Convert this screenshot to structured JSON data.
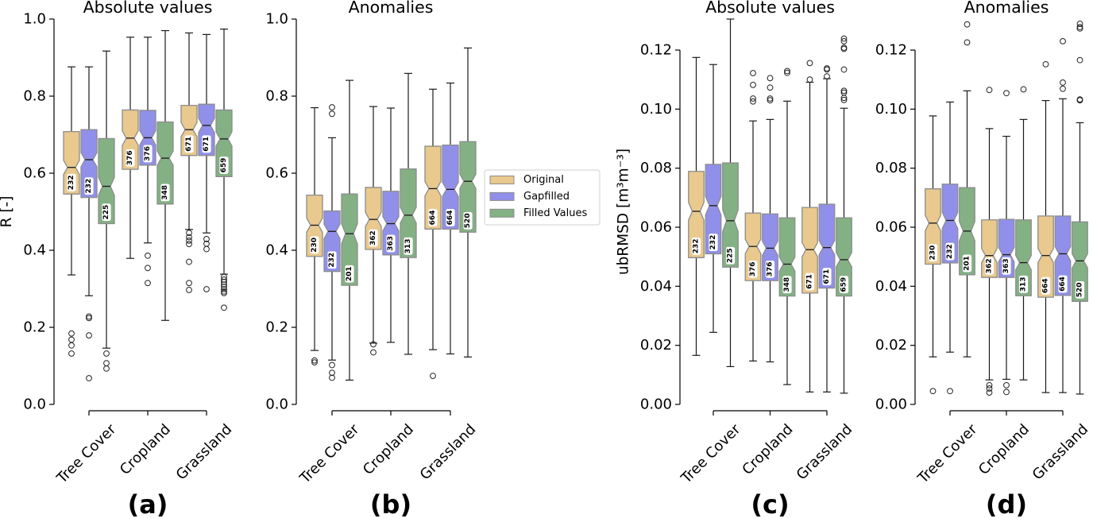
{
  "legend": {
    "placement": "between panels (b) and (c), vertically centered",
    "items": [
      {
        "label": "Original",
        "color": "#E9C98E"
      },
      {
        "label": "Gapfilled",
        "color": "#9090EA"
      },
      {
        "label": "Filled Values",
        "color": "#83B184"
      }
    ]
  },
  "chart_data": [
    {
      "type": "box",
      "panel_label": "(a)",
      "title": "Absolute values",
      "ylabel": "R [-]",
      "xlabel": "",
      "ylim": [
        0,
        1.0
      ],
      "yticks": [
        0,
        0.2,
        0.4,
        0.6,
        0.8,
        1.0
      ],
      "ytick_labels": [
        "0.0",
        "0.2",
        "0.4",
        "0.6",
        "0.8",
        "1.0"
      ],
      "grid": false,
      "notched": true,
      "categories": [
        "Tree Cover",
        "Cropland",
        "Grassland"
      ],
      "series": [
        {
          "name": "Original",
          "boxes": [
            {
              "whislo": 0.336,
              "q1": 0.546,
              "median": 0.615,
              "q3": 0.708,
              "whishi": 0.876,
              "n": 232,
              "fliers": [
                0.184,
                0.168,
                0.153,
                0.132
              ]
            },
            {
              "whislo": 0.379,
              "q1": 0.61,
              "median": 0.691,
              "q3": 0.764,
              "whishi": 0.953,
              "n": 376,
              "fliers": []
            },
            {
              "whislo": 0.454,
              "q1": 0.646,
              "median": 0.713,
              "q3": 0.776,
              "whishi": 0.964,
              "n": 671,
              "fliers": [
                0.445,
                0.434,
                0.425,
                0.416,
                0.37,
                0.315,
                0.297
              ]
            }
          ]
        },
        {
          "name": "Gapfilled",
          "boxes": [
            {
              "whislo": 0.282,
              "q1": 0.537,
              "median": 0.635,
              "q3": 0.713,
              "whishi": 0.876,
              "n": 232,
              "fliers": [
                0.228,
                0.224,
                0.179,
                0.068
              ]
            },
            {
              "whislo": 0.419,
              "q1": 0.621,
              "median": 0.692,
              "q3": 0.763,
              "whishi": 0.953,
              "n": 376,
              "fliers": [
                0.386,
                0.354,
                0.315
              ]
            },
            {
              "whislo": 0.445,
              "q1": 0.646,
              "median": 0.724,
              "q3": 0.779,
              "whishi": 0.96,
              "n": 671,
              "fliers": [
                0.429,
                0.417,
                0.403,
                0.299
              ]
            }
          ]
        },
        {
          "name": "Filled Values",
          "boxes": [
            {
              "whislo": 0.146,
              "q1": 0.469,
              "median": 0.566,
              "q3": 0.69,
              "whishi": 0.917,
              "n": 225,
              "fliers": [
                0.132,
                0.107,
                0.093
              ]
            },
            {
              "whislo": 0.218,
              "q1": 0.52,
              "median": 0.639,
              "q3": 0.733,
              "whishi": 0.97,
              "n": 348,
              "fliers": []
            },
            {
              "whislo": 0.338,
              "q1": 0.591,
              "median": 0.689,
              "q3": 0.764,
              "whishi": 0.974,
              "n": 659,
              "fliers": [
                0.331,
                0.324,
                0.318,
                0.311,
                0.305,
                0.299,
                0.293,
                0.289,
                0.251
              ]
            }
          ]
        }
      ]
    },
    {
      "type": "box",
      "panel_label": "(b)",
      "title": "Anomalies",
      "ylabel": "",
      "xlabel": "",
      "ylim": [
        0,
        1.0
      ],
      "yticks": [
        0,
        0.2,
        0.4,
        0.6,
        0.8,
        1.0
      ],
      "ytick_labels": [
        "0.0",
        "0.2",
        "0.4",
        "0.6",
        "0.8",
        "1.0"
      ],
      "grid": false,
      "notched": true,
      "categories": [
        "Tree Cover",
        "Cropland",
        "Grassland"
      ],
      "series": [
        {
          "name": "Original",
          "boxes": [
            {
              "whislo": 0.14,
              "q1": 0.384,
              "median": 0.465,
              "q3": 0.543,
              "whishi": 0.77,
              "n": 230,
              "fliers": [
                0.114,
                0.109
              ]
            },
            {
              "whislo": 0.159,
              "q1": 0.402,
              "median": 0.48,
              "q3": 0.563,
              "whishi": 0.773,
              "n": 362,
              "fliers": [
                0.156,
                0.135
              ]
            },
            {
              "whislo": 0.142,
              "q1": 0.455,
              "median": 0.56,
              "q3": 0.67,
              "whishi": 0.818,
              "n": 664,
              "fliers": [
                0.074
              ]
            }
          ]
        },
        {
          "name": "Gapfilled",
          "boxes": [
            {
              "whislo": 0.115,
              "q1": 0.345,
              "median": 0.449,
              "q3": 0.502,
              "whishi": 0.692,
              "n": 232,
              "fliers": [
                0.771,
                0.754,
                0.102,
                0.082,
                0.069
              ]
            },
            {
              "whislo": 0.161,
              "q1": 0.388,
              "median": 0.469,
              "q3": 0.553,
              "whishi": 0.769,
              "n": 363,
              "fliers": []
            },
            {
              "whislo": 0.131,
              "q1": 0.455,
              "median": 0.558,
              "q3": 0.673,
              "whishi": 0.834,
              "n": 664,
              "fliers": []
            }
          ]
        },
        {
          "name": "Filled Values",
          "boxes": [
            {
              "whislo": 0.063,
              "q1": 0.309,
              "median": 0.443,
              "q3": 0.546,
              "whishi": 0.841,
              "n": 201,
              "fliers": []
            },
            {
              "whislo": 0.13,
              "q1": 0.381,
              "median": 0.491,
              "q3": 0.611,
              "whishi": 0.859,
              "n": 313,
              "fliers": []
            },
            {
              "whislo": 0.123,
              "q1": 0.447,
              "median": 0.579,
              "q3": 0.682,
              "whishi": 0.925,
              "n": 520,
              "fliers": []
            }
          ]
        }
      ]
    },
    {
      "type": "box",
      "panel_label": "(c)",
      "title": "Absolute values",
      "ylabel": "ubRMSD [m³m⁻³]",
      "xlabel": "",
      "ylim": [
        0,
        0.1305
      ],
      "yticks": [
        0,
        0.02,
        0.04,
        0.06,
        0.08,
        0.1,
        0.12
      ],
      "ytick_labels": [
        "0.00",
        "0.02",
        "0.04",
        "0.06",
        "0.08",
        "0.10",
        "0.12"
      ],
      "grid": false,
      "notched": true,
      "categories": [
        "Tree Cover",
        "Cropland",
        "Grassland"
      ],
      "series": [
        {
          "name": "Original",
          "boxes": [
            {
              "whislo": 0.0166,
              "q1": 0.0497,
              "median": 0.0654,
              "q3": 0.0789,
              "whishi": 0.1175,
              "n": 232,
              "fliers": []
            },
            {
              "whislo": 0.0147,
              "q1": 0.0419,
              "median": 0.0535,
              "q3": 0.0648,
              "whishi": 0.096,
              "n": 376,
              "fliers": [
                0.1122,
                0.1082,
                0.1036,
                0.1026
              ]
            },
            {
              "whislo": 0.0042,
              "q1": 0.0377,
              "median": 0.0524,
              "q3": 0.0667,
              "whishi": 0.1091,
              "n": 671,
              "fliers": [
                0.1156,
                0.11
              ]
            }
          ]
        },
        {
          "name": "Gapfilled",
          "boxes": [
            {
              "whislo": 0.0244,
              "q1": 0.051,
              "median": 0.0673,
              "q3": 0.0813,
              "whishi": 0.1151,
              "n": 232,
              "fliers": []
            },
            {
              "whislo": 0.0144,
              "q1": 0.0419,
              "median": 0.0529,
              "q3": 0.0645,
              "whishi": 0.0965,
              "n": 376,
              "fliers": [
                0.1105,
                0.1073,
                0.1036,
                0.103
              ]
            },
            {
              "whislo": 0.0042,
              "q1": 0.0394,
              "median": 0.0531,
              "q3": 0.0678,
              "whishi": 0.1103,
              "n": 671,
              "fliers": [
                0.1138,
                0.1134,
                0.1111
              ]
            }
          ]
        },
        {
          "name": "Filled Values",
          "boxes": [
            {
              "whislo": 0.0128,
              "q1": 0.0465,
              "median": 0.0622,
              "q3": 0.0818,
              "whishi": 0.1305,
              "n": 225,
              "fliers": []
            },
            {
              "whislo": 0.0067,
              "q1": 0.0367,
              "median": 0.0475,
              "q3": 0.0632,
              "whishi": 0.1027,
              "n": 348,
              "fliers": [
                0.1129,
                0.1123
              ]
            },
            {
              "whislo": 0.0038,
              "q1": 0.0367,
              "median": 0.049,
              "q3": 0.0632,
              "whishi": 0.1003,
              "n": 659,
              "fliers": [
                0.1239,
                0.123,
                0.1208,
                0.1204,
                0.1134,
                0.1062,
                0.1056,
                0.1038,
                0.1031
              ]
            }
          ]
        }
      ]
    },
    {
      "type": "box",
      "panel_label": "(d)",
      "title": "Anomalies",
      "ylabel": "",
      "xlabel": "",
      "ylim": [
        0,
        0.1305
      ],
      "yticks": [
        0,
        0.02,
        0.04,
        0.06,
        0.08,
        0.1,
        0.12
      ],
      "ytick_labels": [
        "0.00",
        "0.02",
        "0.04",
        "0.06",
        "0.08",
        "0.10",
        "0.12"
      ],
      "grid": false,
      "notched": true,
      "categories": [
        "Tree Cover",
        "Cropland",
        "Grassland"
      ],
      "series": [
        {
          "name": "Original",
          "boxes": [
            {
              "whislo": 0.0161,
              "q1": 0.0475,
              "median": 0.0614,
              "q3": 0.073,
              "whishi": 0.0977,
              "n": 230,
              "fliers": [
                0.0045
              ]
            },
            {
              "whislo": 0.0083,
              "q1": 0.043,
              "median": 0.0504,
              "q3": 0.0625,
              "whishi": 0.0934,
              "n": 362,
              "fliers": [
                0.1065,
                0.0065,
                0.0054,
                0.004
              ]
            },
            {
              "whislo": 0.004,
              "q1": 0.0363,
              "median": 0.0504,
              "q3": 0.0638,
              "whishi": 0.1029,
              "n": 664,
              "fliers": [
                0.1152
              ]
            }
          ]
        },
        {
          "name": "Gapfilled",
          "boxes": [
            {
              "whislo": 0.0177,
              "q1": 0.0479,
              "median": 0.0623,
              "q3": 0.0746,
              "whishi": 0.1024,
              "n": 232,
              "fliers": [
                0.0045
              ]
            },
            {
              "whislo": 0.0085,
              "q1": 0.043,
              "median": 0.0507,
              "q3": 0.0627,
              "whishi": 0.0908,
              "n": 363,
              "fliers": [
                0.1054,
                0.0065,
                0.0042
              ]
            },
            {
              "whislo": 0.004,
              "q1": 0.0369,
              "median": 0.051,
              "q3": 0.0638,
              "whishi": 0.1035,
              "n": 664,
              "fliers": [
                0.123,
                0.109,
                0.1069
              ]
            }
          ]
        },
        {
          "name": "Filled Values",
          "boxes": [
            {
              "whislo": 0.0161,
              "q1": 0.0439,
              "median": 0.0587,
              "q3": 0.0734,
              "whishi": 0.1062,
              "n": 201,
              "fliers": [
                0.1287,
                0.1226
              ]
            },
            {
              "whislo": 0.0083,
              "q1": 0.0368,
              "median": 0.048,
              "q3": 0.0625,
              "whishi": 0.0965,
              "n": 313,
              "fliers": [
                0.1067
              ]
            },
            {
              "whislo": 0.0035,
              "q1": 0.0349,
              "median": 0.0486,
              "q3": 0.0618,
              "whishi": 0.0954,
              "n": 520,
              "fliers": [
                0.1289,
                0.1278,
                0.1273,
                0.1166,
                0.1033,
                0.103
              ]
            }
          ]
        }
      ]
    }
  ]
}
